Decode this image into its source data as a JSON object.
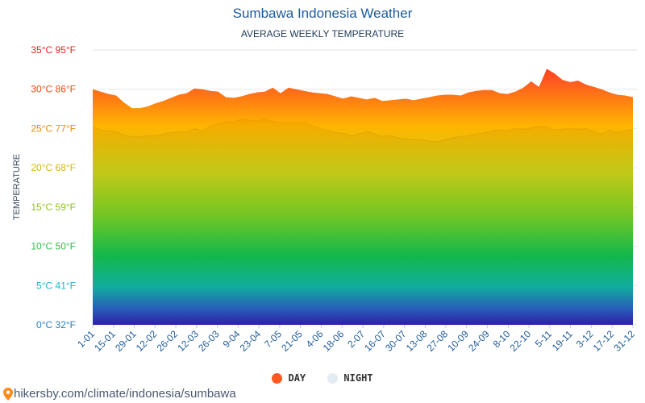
{
  "title": "Sumbawa Indonesia Weather",
  "subtitle": "AVERAGE WEEKLY TEMPERATURE",
  "ylabel": "TEMPERATURE",
  "source": "hikersby.com/climate/indonesia/sumbawa",
  "legend": {
    "day": "DAY",
    "night": "NIGHT"
  },
  "colors": {
    "day": "#ff5a1f",
    "night": "#e3ecf3",
    "title": "#1f5b99"
  },
  "chart_data": {
    "type": "area",
    "title": "Sumbawa Indonesia Weather",
    "subtitle": "AVERAGE WEEKLY TEMPERATURE",
    "ylabel": "TEMPERATURE",
    "ylim": [
      0,
      35
    ],
    "grid": true,
    "legend_position": "bottom",
    "y_ticks": [
      {
        "value": 0,
        "label": "0°C 32°F",
        "color": "#2a7fc1"
      },
      {
        "value": 5,
        "label": "5°C 41°F",
        "color": "#19b6c9"
      },
      {
        "value": 10,
        "label": "10°C 50°F",
        "color": "#2ebd4a"
      },
      {
        "value": 15,
        "label": "15°C 59°F",
        "color": "#8fc318"
      },
      {
        "value": 20,
        "label": "20°C 68°F",
        "color": "#d3b80e"
      },
      {
        "value": 25,
        "label": "25°C 77°F",
        "color": "#f08a0c"
      },
      {
        "value": 30,
        "label": "30°C 86°F",
        "color": "#ee4a14"
      },
      {
        "value": 35,
        "label": "35°C 95°F",
        "color": "#e02424"
      }
    ],
    "x_ticks": [
      "1-01",
      "15-01",
      "29-01",
      "12-02",
      "26-02",
      "12-03",
      "26-03",
      "9-04",
      "23-04",
      "7-05",
      "21-05",
      "4-06",
      "18-06",
      "2-07",
      "16-07",
      "30-07",
      "13-08",
      "27-08",
      "10-09",
      "24-09",
      "8-10",
      "22-10",
      "5-11",
      "19-11",
      "3-12",
      "17-12",
      "31-12"
    ],
    "series": [
      {
        "name": "DAY",
        "values": [
          30.0,
          29.7,
          29.4,
          29.2,
          28.3,
          27.6,
          27.6,
          27.8,
          28.2,
          28.5,
          28.9,
          29.3,
          29.5,
          30.1,
          30.0,
          29.8,
          29.7,
          29.0,
          28.9,
          29.1,
          29.4,
          29.6,
          29.7,
          30.2,
          29.5,
          30.2,
          30.0,
          29.8,
          29.6,
          29.5,
          29.4,
          29.1,
          28.8,
          29.1,
          28.9,
          28.7,
          28.9,
          28.5,
          28.6,
          28.7,
          28.8,
          28.6,
          28.8,
          29.0,
          29.2,
          29.3,
          29.3,
          29.2,
          29.6,
          29.8,
          29.9,
          29.9,
          29.5,
          29.4,
          29.7,
          30.2,
          31.0,
          30.3,
          32.6,
          32.0,
          31.2,
          30.9,
          31.1,
          30.6,
          30.3,
          30.0,
          29.6,
          29.3,
          29.2,
          29.0
        ]
      },
      {
        "name": "NIGHT",
        "values": [
          25.2,
          24.8,
          24.7,
          24.6,
          24.1,
          24.0,
          23.9,
          24.1,
          24.1,
          24.3,
          24.5,
          24.6,
          24.5,
          25.0,
          24.7,
          25.3,
          25.6,
          25.8,
          25.9,
          26.2,
          26.1,
          26.0,
          26.3,
          25.9,
          25.7,
          25.8,
          25.7,
          25.8,
          25.4,
          25.0,
          24.7,
          24.5,
          24.4,
          24.1,
          24.3,
          24.6,
          24.3,
          24.0,
          24.1,
          23.8,
          23.7,
          23.6,
          23.6,
          23.4,
          23.3,
          23.6,
          23.8,
          24.0,
          24.1,
          24.3,
          24.5,
          24.7,
          24.8,
          24.7,
          25.0,
          24.9,
          25.1,
          25.3,
          25.2,
          24.8,
          24.9,
          25.0,
          24.9,
          25.0,
          24.6,
          24.3,
          24.8,
          24.5,
          24.7,
          24.9
        ]
      }
    ]
  }
}
